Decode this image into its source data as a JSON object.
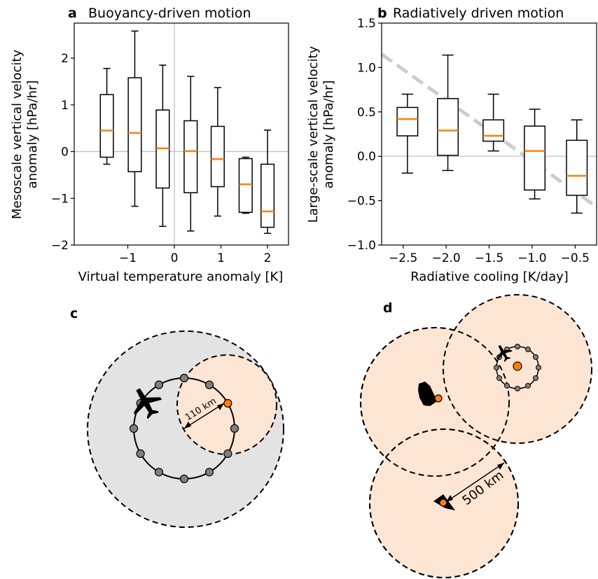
{
  "chart_data": [
    {
      "type": "box",
      "panel_letter": "a",
      "title": "Buoyancy-driven motion",
      "xlabel": "Virtual temperature anomaly [K]",
      "ylabel_lines": [
        "Mesoscale vertical velocity",
        "anomaly [hPa/hr]"
      ],
      "xlim": [
        -2.15,
        2.45
      ],
      "ylim": [
        -2,
        2.75
      ],
      "xticks": [
        -1,
        0,
        1,
        2
      ],
      "xtick_labels": [
        "−1",
        "0",
        "1",
        "2"
      ],
      "yticks": [
        -2,
        -1,
        0,
        1,
        2
      ],
      "ytick_labels": [
        "−2",
        "−1",
        "0",
        "1",
        "2"
      ],
      "reference_lines": [
        {
          "axis": "x",
          "value": 0
        },
        {
          "axis": "y",
          "value": 0
        }
      ],
      "boxes": [
        {
          "x": -1.45,
          "whisker_low": -0.27,
          "q1": -0.12,
          "median": 0.45,
          "q3": 1.22,
          "whisker_high": 1.78
        },
        {
          "x": -0.85,
          "whisker_low": -1.17,
          "q1": -0.43,
          "median": 0.4,
          "q3": 1.58,
          "whisker_high": 2.58
        },
        {
          "x": -0.25,
          "whisker_low": -1.6,
          "q1": -0.78,
          "median": 0.07,
          "q3": 0.89,
          "whisker_high": 1.85
        },
        {
          "x": 0.35,
          "whisker_low": -1.7,
          "q1": -0.88,
          "median": 0.01,
          "q3": 0.66,
          "whisker_high": 1.61
        },
        {
          "x": 0.93,
          "whisker_low": -1.38,
          "q1": -0.75,
          "median": -0.16,
          "q3": 0.54,
          "whisker_high": 1.37
        },
        {
          "x": 1.53,
          "whisker_low": -1.32,
          "q1": -1.3,
          "median": -0.7,
          "q3": -0.15,
          "whisker_high": -0.12
        },
        {
          "x": 2.0,
          "whisker_low": -1.75,
          "q1": -1.62,
          "median": -1.28,
          "q3": -0.27,
          "whisker_high": 0.46
        }
      ],
      "box_width": 0.28,
      "median_color": "#ff7f0e"
    },
    {
      "type": "box",
      "panel_letter": "b",
      "title": "Radiatively driven motion",
      "xlabel": "Radiative cooling [K/day]",
      "ylabel_lines": [
        "Large-scale vertical velocity",
        "anomaly [hPa/hr]"
      ],
      "xlim": [
        -2.75,
        -0.25
      ],
      "ylim": [
        -1.0,
        1.5
      ],
      "xticks": [
        -2.5,
        -2.0,
        -1.5,
        -1.0,
        -0.5
      ],
      "xtick_labels": [
        "−2.5",
        "−2.0",
        "−1.5",
        "−1.0",
        "−0.5"
      ],
      "yticks": [
        -1.0,
        -0.5,
        0.0,
        0.5,
        1.0,
        1.5
      ],
      "ytick_labels": [
        "−1.0",
        "−0.5",
        "0.0",
        "0.5",
        "1.0",
        "1.5"
      ],
      "reference_lines": [
        {
          "axis": "y",
          "value": 0
        }
      ],
      "trend_line": {
        "x1": -2.75,
        "y1": 1.15,
        "x2": -0.25,
        "y2": -0.57,
        "color": "#cccccc"
      },
      "boxes": [
        {
          "x": -2.45,
          "whisker_low": -0.19,
          "q1": 0.23,
          "median": 0.42,
          "q3": 0.55,
          "whisker_high": 0.7
        },
        {
          "x": -1.98,
          "whisker_low": -0.16,
          "q1": 0.01,
          "median": 0.29,
          "q3": 0.65,
          "whisker_high": 1.14
        },
        {
          "x": -1.45,
          "whisker_low": 0.06,
          "q1": 0.17,
          "median": 0.23,
          "q3": 0.41,
          "whisker_high": 0.7
        },
        {
          "x": -0.97,
          "whisker_low": -0.48,
          "q1": -0.38,
          "median": 0.06,
          "q3": 0.34,
          "whisker_high": 0.53
        },
        {
          "x": -0.48,
          "whisker_low": -0.64,
          "q1": -0.44,
          "median": -0.22,
          "q3": 0.18,
          "whisker_high": 0.41
        }
      ],
      "box_width": 0.24,
      "median_color": "#ff7f0e"
    }
  ],
  "diagram_c": {
    "panel_letter": "c",
    "scale_label": "110 km"
  },
  "diagram_d": {
    "panel_letter": "d",
    "scale_label": "500 km"
  },
  "colors": {
    "orange": "#ff7f0e",
    "peach_fill": "#fde5d3",
    "gray_fill": "#e3e3e3",
    "sonde_gray": "#808080",
    "trend_gray": "#cccccc",
    "reference_gray": "#bdbdbd"
  },
  "icons": [
    "airplane-icon",
    "island-icon",
    "ship-icon"
  ]
}
